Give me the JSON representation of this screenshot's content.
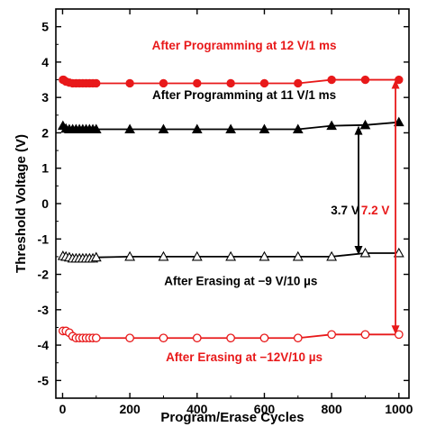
{
  "chart_data": {
    "type": "line",
    "xlabel": "Program/Erase Cycles",
    "ylabel": "Threshold Voltage (V)",
    "xlim": [
      -20,
      1030
    ],
    "ylim": [
      -5.5,
      5.5
    ],
    "xticks": [
      0,
      200,
      400,
      600,
      800,
      1000
    ],
    "yticks": [
      -5,
      -4,
      -3,
      -2,
      -1,
      0,
      1,
      2,
      3,
      4,
      5
    ],
    "series": [
      {
        "name": "After Programming at 12 V/1 ms",
        "color": "#e8191a",
        "marker": "filled-circle",
        "x": [
          1,
          3,
          10,
          20,
          30,
          40,
          50,
          60,
          70,
          80,
          90,
          100,
          200,
          300,
          400,
          500,
          600,
          700,
          800,
          900,
          1000
        ],
        "y": [
          3.5,
          3.5,
          3.45,
          3.42,
          3.4,
          3.4,
          3.4,
          3.4,
          3.4,
          3.4,
          3.4,
          3.4,
          3.4,
          3.4,
          3.4,
          3.4,
          3.4,
          3.4,
          3.5,
          3.5,
          3.5
        ]
      },
      {
        "name": "After Programming at 11 V/1 ms",
        "color": "#000000",
        "marker": "filled-triangle",
        "x": [
          1,
          10,
          20,
          30,
          40,
          50,
          60,
          70,
          80,
          90,
          100,
          200,
          300,
          400,
          500,
          600,
          700,
          800,
          900,
          1000
        ],
        "y": [
          2.2,
          2.12,
          2.1,
          2.1,
          2.1,
          2.1,
          2.1,
          2.1,
          2.1,
          2.1,
          2.1,
          2.1,
          2.1,
          2.1,
          2.1,
          2.1,
          2.1,
          2.2,
          2.22,
          2.3
        ]
      },
      {
        "name": "After Erasing at -9 V/10 µs",
        "color": "#000000",
        "marker": "open-triangle",
        "x": [
          1,
          10,
          20,
          30,
          40,
          50,
          60,
          70,
          80,
          90,
          100,
          200,
          300,
          400,
          500,
          600,
          700,
          800,
          900,
          1000
        ],
        "y": [
          -1.48,
          -1.5,
          -1.52,
          -1.55,
          -1.55,
          -1.55,
          -1.55,
          -1.55,
          -1.55,
          -1.55,
          -1.52,
          -1.5,
          -1.5,
          -1.5,
          -1.5,
          -1.5,
          -1.5,
          -1.5,
          -1.4,
          -1.4
        ]
      },
      {
        "name": "After Erasing at -12V/10 µs",
        "color": "#e8191a",
        "marker": "open-circle",
        "x": [
          1,
          10,
          20,
          30,
          40,
          50,
          60,
          70,
          80,
          90,
          100,
          200,
          300,
          400,
          500,
          600,
          700,
          800,
          900,
          1000
        ],
        "y": [
          -3.6,
          -3.6,
          -3.65,
          -3.75,
          -3.8,
          -3.8,
          -3.8,
          -3.8,
          -3.8,
          -3.8,
          -3.8,
          -3.8,
          -3.8,
          -3.8,
          -3.8,
          -3.8,
          -3.8,
          -3.7,
          -3.7,
          -3.7
        ]
      }
    ],
    "annotations": [
      {
        "text": "After Programming at 12 V/1 ms",
        "color": "#e8191a",
        "anchor_x": 540,
        "anchor_y": 4.35
      },
      {
        "text": "After Programming at 11 V/1 ms",
        "color": "#000000",
        "anchor_x": 540,
        "anchor_y": 2.95
      },
      {
        "text": "After Erasing at −9 V/10 µs",
        "color": "#000000",
        "anchor_x": 530,
        "anchor_y": -2.3
      },
      {
        "text": "After Erasing at −12V/10 µs",
        "color": "#e8191a",
        "anchor_x": 540,
        "anchor_y": -4.45
      },
      {
        "text": "3.7 V",
        "color": "#000000",
        "anchor_x": 840,
        "anchor_y": -0.3
      },
      {
        "text": "7.2 V",
        "color": "#e8191a",
        "anchor_x": 930,
        "anchor_y": -0.3
      }
    ],
    "arrows": [
      {
        "label": "3.7 V",
        "color": "#000000",
        "x": 880,
        "y_from": 2.2,
        "y_to": -1.45
      },
      {
        "label": "7.2 V",
        "color": "#e8191a",
        "x": 990,
        "y_from": 3.5,
        "y_to": -3.7
      }
    ]
  }
}
